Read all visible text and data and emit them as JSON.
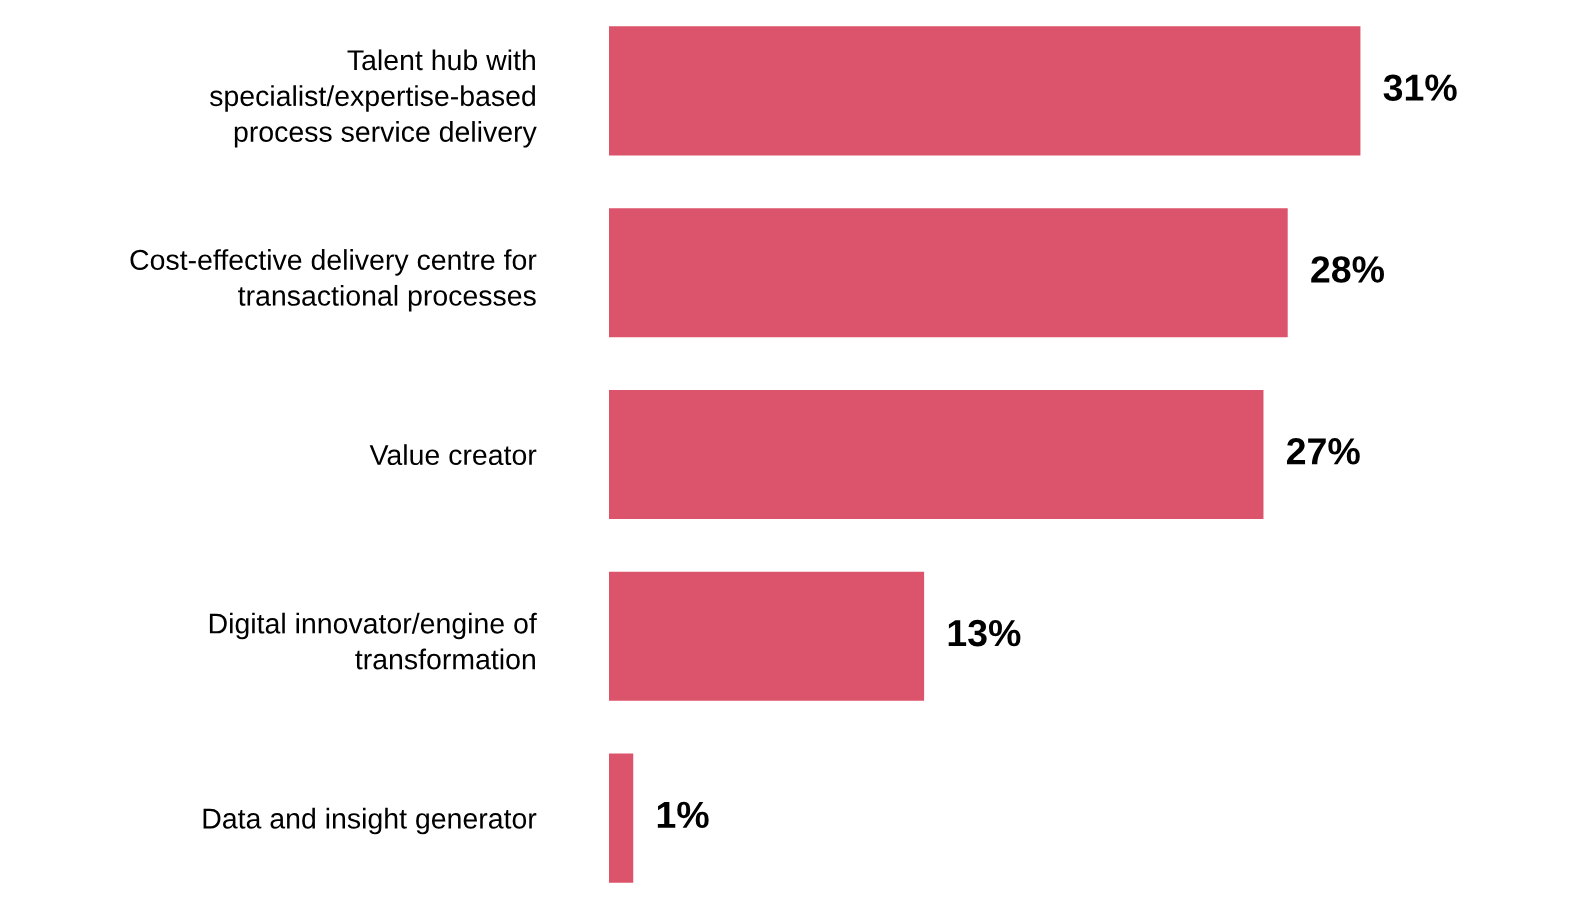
{
  "chart_data": {
    "type": "bar",
    "orientation": "horizontal",
    "categories": [
      "Talent hub with\nspecialist/expertise-based\nprocess service delivery",
      "Cost-effective delivery centre for\ntransactional processes",
      "Value creator",
      "Digital innovator/engine of\ntransformation",
      "Data and insight generator"
    ],
    "values": [
      31,
      28,
      27,
      13,
      1
    ],
    "value_labels": [
      "31%",
      "28%",
      "27%",
      "13%",
      "1%"
    ],
    "color": "#dc546b",
    "grid": false,
    "legend": false
  }
}
